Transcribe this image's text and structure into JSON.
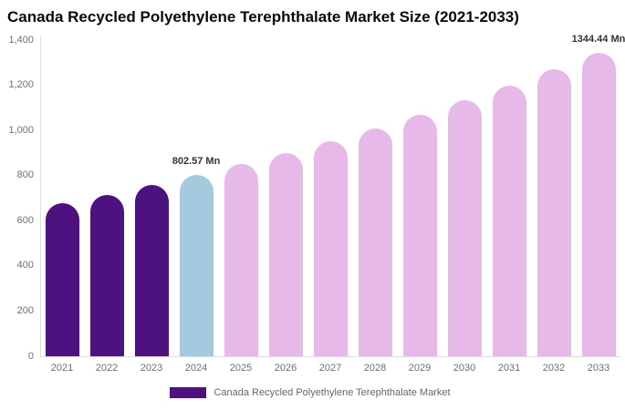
{
  "title": "Canada Recycled Polyethylene Terephthalate Market Size (2021-2033)",
  "legend": {
    "label": "Canada Recycled Polyethylene Terephthalate Market",
    "swatch_color": "#4d1280"
  },
  "colors": {
    "historical_bar": "#4d1280",
    "current_year_bar": "#a5cadf",
    "forecast_bar": "#e6b9e9",
    "axis_line": "#dddddd",
    "tick_text": "#6e6e6e",
    "annotation_text": "#333333",
    "title_text": "#0a0a0a",
    "background": "#ffffff"
  },
  "chart_data": {
    "type": "bar",
    "title": "Canada Recycled Polyethylene Terephthalate Market Size (2021-2033)",
    "xlabel": "",
    "ylabel": "",
    "unit": "Mn",
    "ylim": [
      0,
      1400
    ],
    "grid": false,
    "legend_position": "bottom",
    "y_ticks": [
      0,
      200,
      400,
      600,
      800,
      1000,
      1200,
      1400
    ],
    "y_tick_labels": [
      "0",
      "200",
      "400",
      "600",
      "800",
      "1,000",
      "1,200",
      "1,400"
    ],
    "categories": [
      "2021",
      "2022",
      "2023",
      "2024",
      "2025",
      "2026",
      "2027",
      "2028",
      "2029",
      "2030",
      "2031",
      "2032",
      "2033"
    ],
    "series": [
      {
        "name": "Canada Recycled Polyethylene Terephthalate Market",
        "values": [
          676,
          716,
          758,
          802.57,
          850,
          900,
          953,
          1009,
          1069,
          1132,
          1199,
          1270,
          1344.44
        ]
      }
    ],
    "bar_colors": [
      "#4d1280",
      "#4d1280",
      "#4d1280",
      "#a5cadf",
      "#e6b9e9",
      "#e6b9e9",
      "#e6b9e9",
      "#e6b9e9",
      "#e6b9e9",
      "#e6b9e9",
      "#e6b9e9",
      "#e6b9e9",
      "#e6b9e9"
    ],
    "annotations": [
      {
        "year": "2024",
        "text": "802.57 Mn"
      },
      {
        "year": "2033",
        "text": "1344.44 Mn"
      }
    ]
  }
}
